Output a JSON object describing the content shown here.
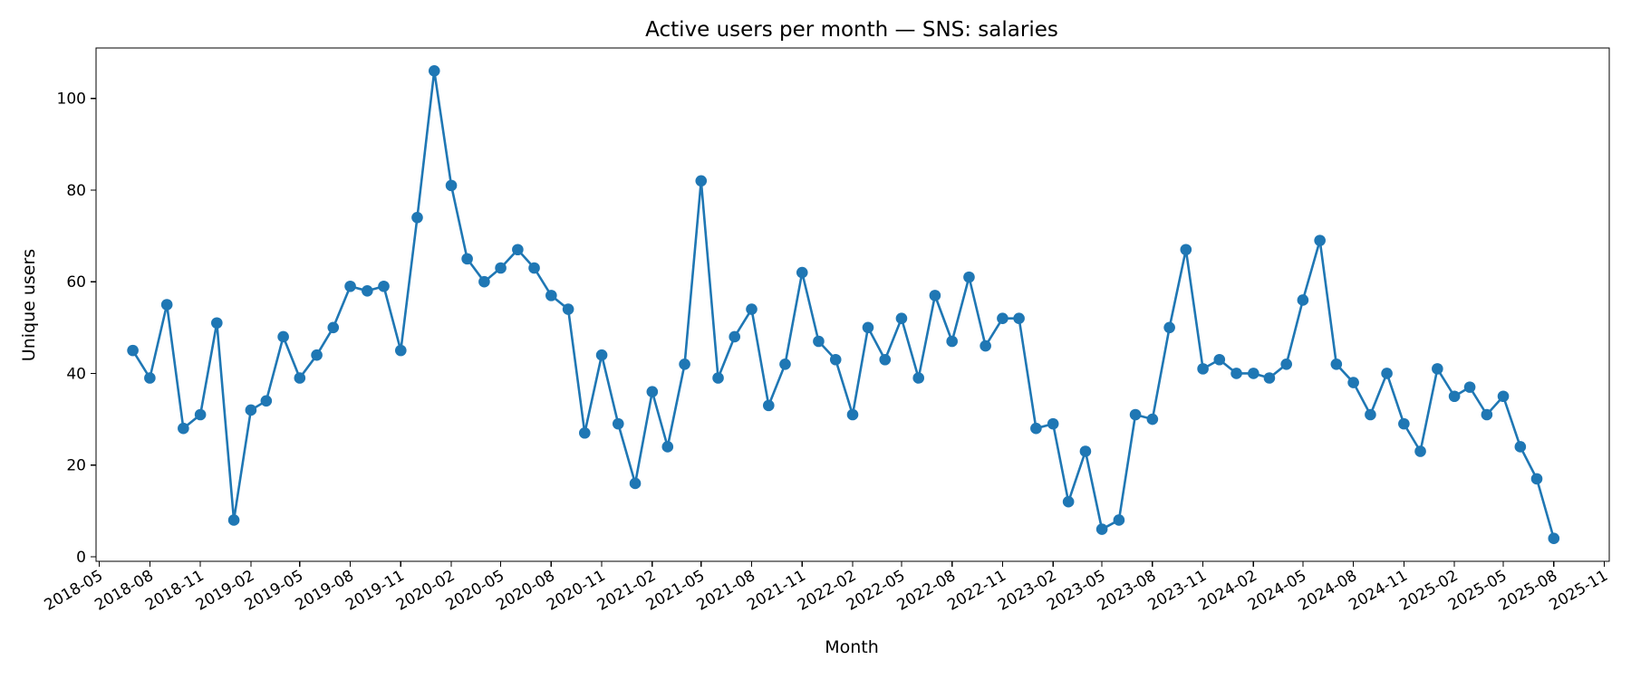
{
  "chart_data": {
    "type": "line",
    "title": "Active users per month — SNS: salaries",
    "xlabel": "Month",
    "ylabel": "Unique users",
    "ylim": [
      -1,
      111
    ],
    "xlim": [
      "2018-04-25",
      "2025-11-10"
    ],
    "y_ticks": [
      0,
      20,
      40,
      60,
      80,
      100
    ],
    "x_ticks": [
      "2018-05",
      "2018-08",
      "2018-11",
      "2019-02",
      "2019-05",
      "2019-08",
      "2019-11",
      "2020-02",
      "2020-05",
      "2020-08",
      "2020-11",
      "2021-02",
      "2021-05",
      "2021-08",
      "2021-11",
      "2022-02",
      "2022-05",
      "2022-08",
      "2022-11",
      "2023-02",
      "2023-05",
      "2023-08",
      "2023-11",
      "2024-02",
      "2024-05",
      "2024-08",
      "2024-11",
      "2025-02",
      "2025-05",
      "2025-08",
      "2025-11"
    ],
    "grid": false,
    "legend": "none",
    "color": "#1f77b4",
    "marker": "circle",
    "x": [
      "2018-07",
      "2018-08",
      "2018-09",
      "2018-10",
      "2018-11",
      "2018-12",
      "2019-01",
      "2019-02",
      "2019-03",
      "2019-04",
      "2019-05",
      "2019-06",
      "2019-07",
      "2019-08",
      "2019-09",
      "2019-10",
      "2019-11",
      "2019-12",
      "2020-01",
      "2020-02",
      "2020-03",
      "2020-04",
      "2020-05",
      "2020-06",
      "2020-07",
      "2020-08",
      "2020-09",
      "2020-10",
      "2020-11",
      "2020-12",
      "2021-01",
      "2021-02",
      "2021-03",
      "2021-04",
      "2021-05",
      "2021-06",
      "2021-07",
      "2021-08",
      "2021-09",
      "2021-10",
      "2021-11",
      "2021-12",
      "2022-01",
      "2022-02",
      "2022-03",
      "2022-04",
      "2022-05",
      "2022-06",
      "2022-07",
      "2022-08",
      "2022-09",
      "2022-10",
      "2022-11",
      "2022-12",
      "2023-01",
      "2023-02",
      "2023-03",
      "2023-04",
      "2023-05",
      "2023-06",
      "2023-07",
      "2023-08",
      "2023-09",
      "2023-10",
      "2023-11",
      "2023-12",
      "2024-01",
      "2024-02",
      "2024-03",
      "2024-04",
      "2024-05",
      "2024-06",
      "2024-07",
      "2024-08",
      "2024-09",
      "2024-10",
      "2024-11",
      "2024-12",
      "2025-01",
      "2025-02",
      "2025-03",
      "2025-04",
      "2025-05",
      "2025-06",
      "2025-07",
      "2025-08"
    ],
    "values": [
      45,
      39,
      55,
      28,
      31,
      51,
      8,
      32,
      34,
      48,
      39,
      44,
      50,
      59,
      58,
      59,
      45,
      74,
      106,
      81,
      65,
      60,
      63,
      67,
      63,
      57,
      54,
      27,
      44,
      29,
      16,
      36,
      24,
      42,
      82,
      39,
      48,
      54,
      33,
      42,
      62,
      47,
      43,
      31,
      50,
      43,
      52,
      39,
      57,
      47,
      61,
      46,
      52,
      52,
      28,
      29,
      12,
      23,
      6,
      8,
      31,
      30,
      50,
      67,
      41,
      43,
      40,
      40,
      39,
      42,
      56,
      69,
      42,
      38,
      31,
      40,
      29,
      23,
      41,
      35,
      37,
      31,
      35,
      24,
      17,
      4
    ]
  }
}
